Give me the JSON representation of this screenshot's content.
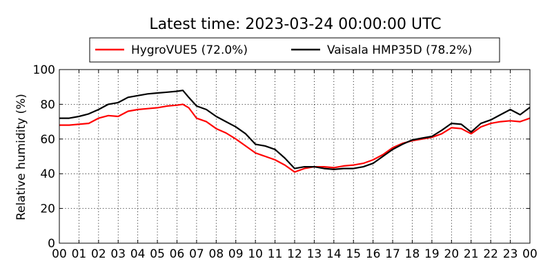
{
  "chart_data": {
    "type": "line",
    "title": "Latest time: 2023-03-24 00:00:00 UTC",
    "ylabel": "Relative humidity (%)",
    "xlabel": "",
    "xlim": [
      0,
      24
    ],
    "ylim": [
      0,
      100
    ],
    "x_tick_labels": [
      "00",
      "01",
      "02",
      "03",
      "04",
      "05",
      "06",
      "07",
      "08",
      "09",
      "10",
      "11",
      "12",
      "13",
      "14",
      "15",
      "16",
      "17",
      "18",
      "19",
      "20",
      "21",
      "22",
      "23",
      "00"
    ],
    "y_tick_labels": [
      "0",
      "20",
      "40",
      "60",
      "80",
      "100"
    ],
    "grid": true,
    "legend_position": "top",
    "series": [
      {
        "name": "HygroVUE5 (72.0%)",
        "color": "#ff0000",
        "x": [
          0,
          0.5,
          1,
          1.5,
          2,
          2.5,
          3,
          3.5,
          4,
          4.5,
          5,
          5.5,
          6,
          6.3,
          6.6,
          7,
          7.5,
          8,
          8.5,
          9,
          9.5,
          10,
          10.5,
          11,
          11.5,
          12,
          12.5,
          13,
          13.5,
          14,
          14.5,
          15,
          15.5,
          16,
          16.5,
          17,
          17.5,
          18,
          18.5,
          19,
          19.5,
          20,
          20.5,
          21,
          21.5,
          22,
          22.5,
          23,
          23.5,
          24
        ],
        "values": [
          68,
          68,
          68.5,
          69,
          72,
          73.5,
          73,
          76,
          77,
          77.5,
          78,
          79,
          79.5,
          80,
          78,
          72,
          70,
          66,
          63.5,
          60,
          56,
          52,
          50,
          48,
          45,
          41,
          43,
          44,
          44,
          43.5,
          44.5,
          45,
          46,
          48,
          51,
          55,
          57.5,
          59,
          60,
          61,
          63,
          66.5,
          66,
          63,
          67,
          69,
          70,
          70.5,
          70,
          72
        ]
      },
      {
        "name": "Vaisala HMP35D (78.2%)",
        "color": "#000000",
        "x": [
          0,
          0.5,
          1,
          1.5,
          2,
          2.5,
          3,
          3.5,
          4,
          4.5,
          5,
          5.5,
          6,
          6.3,
          6.6,
          7,
          7.5,
          8,
          8.5,
          9,
          9.5,
          10,
          10.5,
          11,
          11.5,
          12,
          12.5,
          13,
          13.5,
          14,
          14.5,
          15,
          15.5,
          16,
          16.5,
          17,
          17.5,
          18,
          18.5,
          19,
          19.5,
          20,
          20.5,
          21,
          21.5,
          22,
          22.5,
          23,
          23.5,
          24
        ],
        "values": [
          72,
          72,
          73,
          74.5,
          77,
          80,
          81,
          84,
          85,
          86,
          86.5,
          87,
          87.5,
          88,
          84,
          79,
          77,
          73,
          70,
          67,
          63,
          57,
          56,
          54,
          49,
          43,
          44,
          44,
          43,
          42.5,
          43,
          43,
          44,
          46,
          50,
          54,
          57,
          59.5,
          60.5,
          61.5,
          65,
          69,
          68.5,
          64,
          69,
          71,
          74,
          77,
          74,
          78.2
        ]
      }
    ]
  }
}
